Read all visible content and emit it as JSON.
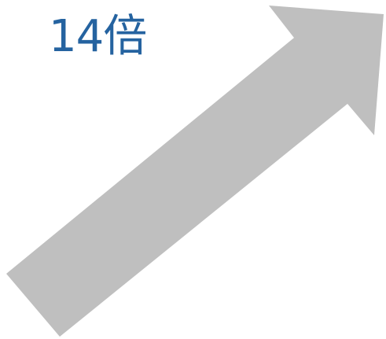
{
  "label": {
    "text": "14倍",
    "color": "#2563a0"
  },
  "arrow": {
    "color": "#bfbfbf",
    "direction": "up-right"
  }
}
